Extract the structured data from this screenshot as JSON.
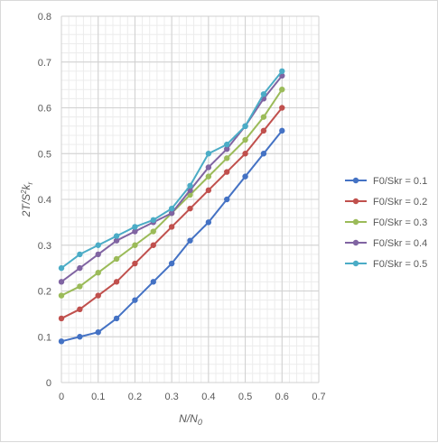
{
  "chart_data": {
    "type": "line",
    "xlabel": "N/N0",
    "ylabel": "2T/S²kr",
    "xlim": [
      0,
      0.7
    ],
    "ylim": [
      0,
      0.8
    ],
    "x_ticks": [
      0,
      0.1,
      0.2,
      0.3,
      0.4,
      0.5,
      0.6,
      0.7
    ],
    "y_ticks": [
      0,
      0.1,
      0.2,
      0.3,
      0.4,
      0.5,
      0.6,
      0.7,
      0.8
    ],
    "x_tick_labels": [
      "0",
      "0.1",
      "0.2",
      "0.3",
      "0.4",
      "0.5",
      "0.6",
      "0.7"
    ],
    "y_tick_labels": [
      "0",
      "0.1",
      "0.2",
      "0.3",
      "0.4",
      "0.5",
      "0.6",
      "0.7",
      "0.8"
    ],
    "grid": true,
    "legend_position": "right",
    "x": [
      0,
      0.05,
      0.1,
      0.15,
      0.2,
      0.25,
      0.3,
      0.35,
      0.4,
      0.45,
      0.5,
      0.55,
      0.6
    ],
    "series": [
      {
        "name": "F0/Skr = 0.1",
        "color": "#4472c4",
        "values": [
          0.09,
          0.1,
          0.11,
          0.14,
          0.18,
          0.22,
          0.26,
          0.31,
          0.35,
          0.4,
          0.45,
          0.5,
          0.55
        ]
      },
      {
        "name": "F0/Skr = 0.2",
        "color": "#c0504d",
        "values": [
          0.14,
          0.16,
          0.19,
          0.22,
          0.26,
          0.3,
          0.34,
          0.38,
          0.42,
          0.46,
          0.5,
          0.55,
          0.6
        ]
      },
      {
        "name": "F0/Skr = 0.3",
        "color": "#9bbb59",
        "values": [
          0.19,
          0.21,
          0.24,
          0.27,
          0.3,
          0.33,
          0.37,
          0.41,
          0.45,
          0.49,
          0.53,
          0.58,
          0.64
        ]
      },
      {
        "name": "F0/Skr = 0.4",
        "color": "#8064a2",
        "values": [
          0.22,
          0.25,
          0.28,
          0.31,
          0.33,
          0.35,
          0.37,
          0.42,
          0.47,
          0.51,
          0.56,
          0.62,
          0.67
        ]
      },
      {
        "name": "F0/Skr = 0.5",
        "color": "#4bacc6",
        "values": [
          0.25,
          0.28,
          0.3,
          0.32,
          0.34,
          0.355,
          0.38,
          0.43,
          0.5,
          0.52,
          0.56,
          0.63,
          0.68
        ]
      }
    ]
  }
}
